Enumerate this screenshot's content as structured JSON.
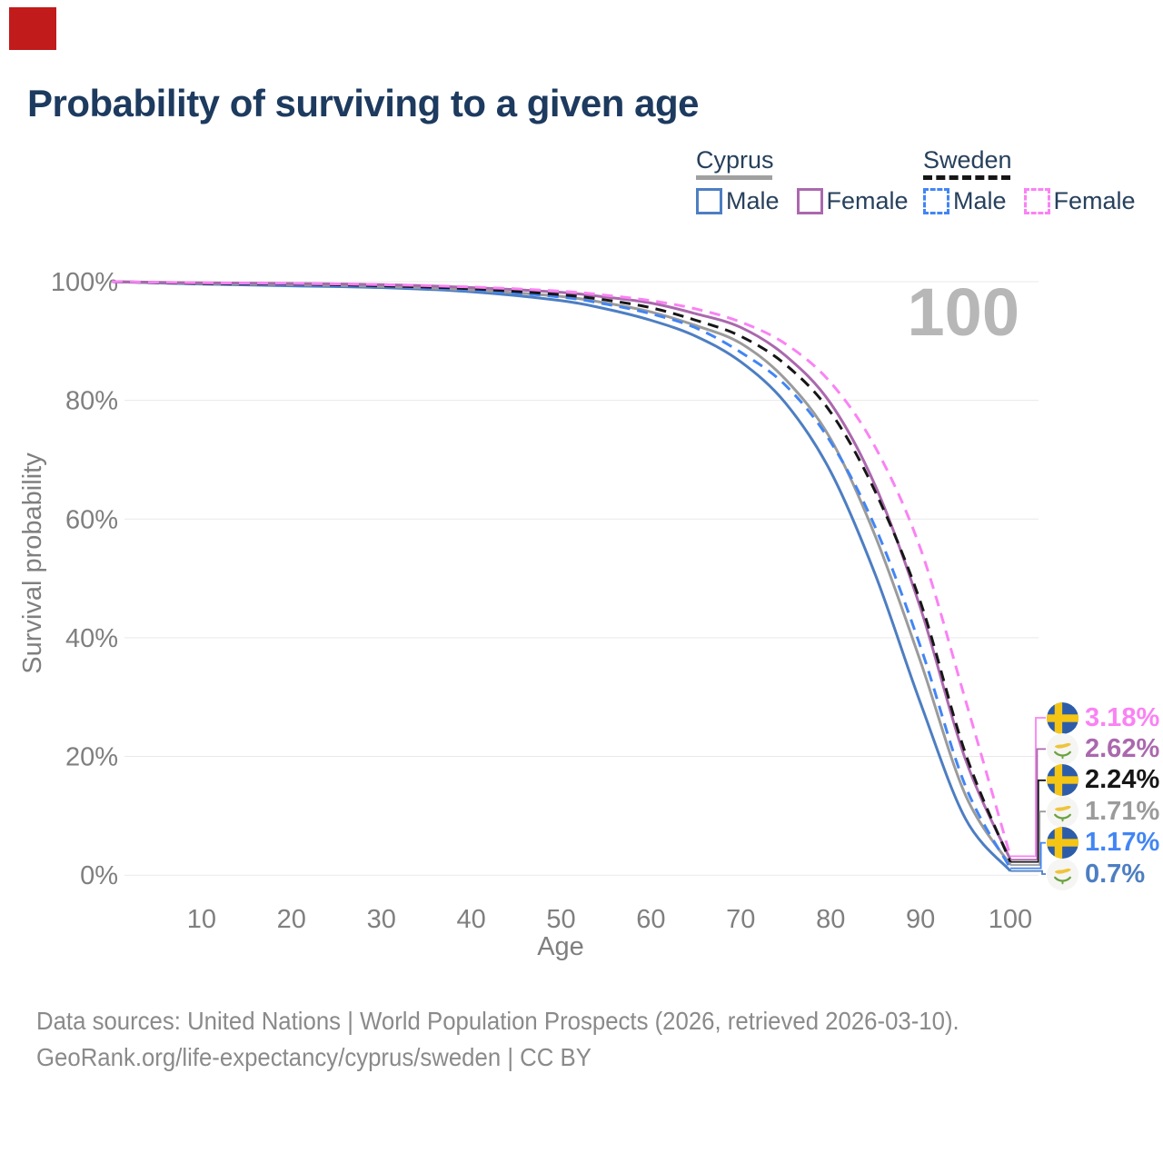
{
  "title": "Probability of surviving to a given age",
  "watermark": "100",
  "colors": {
    "marker_red": "#c21b1b",
    "title_navy": "#1d3a5f",
    "axis_text_gray": "#7f7f7f",
    "gridline": "#e9e9e9",
    "watermark_gray": "#b7b7b7",
    "footer_gray": "#8a8a8a"
  },
  "legend": {
    "groups": [
      {
        "name": "Cyprus",
        "underline_style": "solid",
        "underline_color": "#a0a0a0",
        "items": [
          {
            "label": "Male",
            "color": "#4d7ec2",
            "line_style": "solid"
          },
          {
            "label": "Female",
            "color": "#ab68ae",
            "line_style": "solid"
          }
        ]
      },
      {
        "name": "Sweden",
        "underline_style": "dashed",
        "underline_color": "#161616",
        "items": [
          {
            "label": "Male",
            "color": "#4285f4",
            "line_style": "dashed"
          },
          {
            "label": "Female",
            "color": "#fa82f4",
            "line_style": "dashed"
          }
        ]
      }
    ]
  },
  "chart_data": {
    "type": "line",
    "title": "Probability of surviving to a given age",
    "xlabel": "Age",
    "ylabel": "Survival probability",
    "xlim": [
      0,
      100
    ],
    "ylim": [
      0,
      100
    ],
    "x_ticks": [
      10,
      20,
      30,
      40,
      50,
      60,
      70,
      80,
      90,
      100
    ],
    "y_tick_labels": [
      "0%",
      "20%",
      "40%",
      "60%",
      "80%",
      "100%"
    ],
    "grid": "horizontal-only",
    "legend_position": "top-right",
    "x": [
      0,
      10,
      20,
      30,
      40,
      50,
      55,
      60,
      65,
      70,
      75,
      80,
      85,
      90,
      95,
      100
    ],
    "series": [
      {
        "name": "Cyprus Male",
        "country": "Cyprus",
        "group": "Male",
        "line_style": "solid",
        "color": "#4d7ec2",
        "values": [
          100,
          99.6,
          99.3,
          99.0,
          98.3,
          96.8,
          95.4,
          93.5,
          90.8,
          86.5,
          79.5,
          68.0,
          50.5,
          29.0,
          9.5,
          0.7
        ],
        "end_label": "0.7%"
      },
      {
        "name": "Cyprus Both Sexes",
        "country": "Cyprus",
        "group": "All",
        "line_style": "solid",
        "color": "#9b9b9b",
        "values": [
          100,
          99.7,
          99.5,
          99.2,
          98.6,
          97.5,
          96.4,
          94.9,
          92.6,
          89.6,
          83.5,
          73.5,
          57.0,
          36.0,
          13.5,
          1.71
        ],
        "end_label": "1.71%"
      },
      {
        "name": "Sweden Male",
        "country": "Sweden",
        "group": "Male",
        "line_style": "dashed",
        "color": "#4285f4",
        "values": [
          100,
          99.7,
          99.5,
          99.2,
          98.6,
          97.4,
          96.2,
          94.6,
          92.2,
          88.1,
          82.5,
          73.0,
          58.5,
          38.5,
          15.0,
          1.17
        ],
        "end_label": "1.17%"
      },
      {
        "name": "Cyprus Female",
        "country": "Cyprus",
        "group": "Female",
        "line_style": "solid",
        "color": "#ab68ae",
        "values": [
          100,
          99.8,
          99.7,
          99.5,
          99.0,
          98.2,
          97.4,
          96.4,
          94.6,
          92.3,
          87.5,
          79.5,
          65.5,
          45.0,
          19.5,
          2.62
        ],
        "end_label": "2.62%"
      },
      {
        "name": "Sweden Both Sexes",
        "country": "Sweden",
        "group": "All",
        "line_style": "dashed",
        "color": "#161616",
        "values": [
          100,
          99.7,
          99.6,
          99.3,
          98.8,
          97.8,
          96.9,
          95.6,
          93.5,
          90.8,
          86.0,
          78.0,
          64.5,
          46.0,
          20.5,
          2.24
        ],
        "end_label": "2.24%"
      },
      {
        "name": "Sweden Female",
        "country": "Sweden",
        "group": "Female",
        "line_style": "dashed",
        "color": "#fa82f4",
        "values": [
          100,
          99.8,
          99.7,
          99.5,
          99.1,
          98.4,
          97.7,
          96.8,
          95.4,
          93.2,
          89.5,
          83.0,
          72.0,
          55.0,
          29.5,
          3.18
        ],
        "end_label": "3.18%"
      }
    ],
    "annotations": [
      {
        "series": 5,
        "flag": "sweden",
        "text": "3.18%"
      },
      {
        "series": 3,
        "flag": "cyprus",
        "text": "2.62%"
      },
      {
        "series": 4,
        "flag": "sweden",
        "text": "2.24%"
      },
      {
        "series": 1,
        "flag": "cyprus",
        "text": "1.71%"
      },
      {
        "series": 2,
        "flag": "sweden",
        "text": "1.17%"
      },
      {
        "series": 0,
        "flag": "cyprus",
        "text": "0.7%"
      }
    ]
  },
  "footer": {
    "line1": "Data sources: United Nations | World Population Prospects (2026, retrieved 2026-03-10).",
    "line2": "GeoRank.org/life-expectancy/cyprus/sweden | CC BY"
  }
}
